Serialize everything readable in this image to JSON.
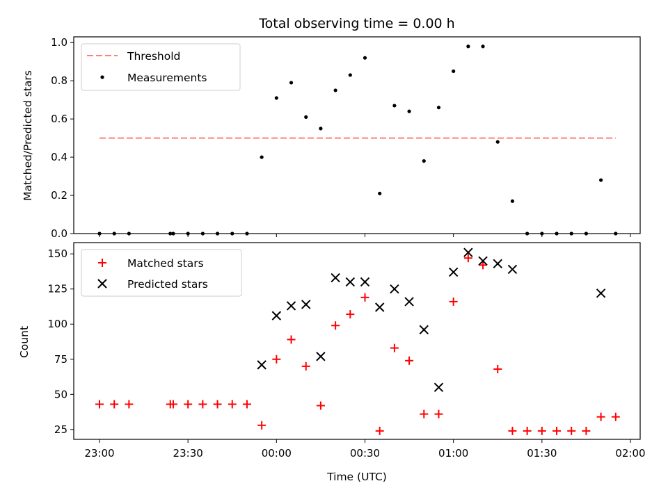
{
  "chart_data": [
    {
      "type": "scatter",
      "title": "Total observing time = 0.00 h",
      "ylabel": "Matched/Predicted stars",
      "ylim": [
        0,
        1.03
      ],
      "yticks": [
        "0.0",
        "0.2",
        "0.4",
        "0.6",
        "0.8",
        "1.0"
      ],
      "legend_position": "top-left",
      "threshold": {
        "name": "Threshold",
        "value": 0.5,
        "x_start": "23:00",
        "x_end": "01:55",
        "color": "#ff7f7f",
        "style": "dashed"
      },
      "series": [
        {
          "name": "Measurements",
          "color": "#000000",
          "marker": "dot",
          "x": [
            "23:00",
            "23:05",
            "23:10",
            "23:24",
            "23:25",
            "23:30",
            "23:35",
            "23:40",
            "23:45",
            "23:50",
            "23:55",
            "00:00",
            "00:05",
            "00:10",
            "00:15",
            "00:20",
            "00:25",
            "00:30",
            "00:35",
            "00:40",
            "00:45",
            "00:50",
            "00:55",
            "01:00",
            "01:05",
            "01:10",
            "01:15",
            "01:20",
            "01:25",
            "01:30",
            "01:35",
            "01:40",
            "01:45",
            "01:50",
            "01:55"
          ],
          "values": [
            0,
            0,
            0,
            0,
            0,
            0,
            0,
            0,
            0,
            0,
            0.4,
            0.71,
            0.79,
            0.61,
            0.55,
            0.75,
            0.83,
            0.92,
            0.21,
            0.67,
            0.64,
            0.38,
            0.66,
            0.85,
            0.98,
            0.98,
            0.48,
            0.17,
            0,
            0,
            0,
            0,
            0,
            0.28,
            0
          ]
        }
      ]
    },
    {
      "type": "scatter",
      "ylabel": "Count",
      "xlabel": "Time (UTC)",
      "ylim": [
        18,
        158
      ],
      "yticks": [
        "25",
        "50",
        "75",
        "100",
        "125",
        "150"
      ],
      "xticks": [
        "23:00",
        "23:30",
        "00:00",
        "00:30",
        "01:00",
        "01:30",
        "02:00"
      ],
      "legend_position": "top-left",
      "series": [
        {
          "name": "Matched stars",
          "color": "#ff0000",
          "marker": "plus",
          "x": [
            "23:00",
            "23:05",
            "23:10",
            "23:24",
            "23:25",
            "23:30",
            "23:35",
            "23:40",
            "23:45",
            "23:50",
            "23:55",
            "00:00",
            "00:05",
            "00:10",
            "00:15",
            "00:20",
            "00:25",
            "00:30",
            "00:35",
            "00:40",
            "00:45",
            "00:50",
            "00:55",
            "01:00",
            "01:05",
            "01:10",
            "01:15",
            "01:20",
            "01:25",
            "01:30",
            "01:35",
            "01:40",
            "01:45",
            "01:50",
            "01:55"
          ],
          "values": [
            43,
            43,
            43,
            43,
            43,
            43,
            43,
            43,
            43,
            43,
            28,
            75,
            89,
            70,
            42,
            99,
            107,
            119,
            24,
            83,
            74,
            36,
            36,
            116,
            147,
            142,
            68,
            24,
            24,
            24,
            24,
            24,
            24,
            34,
            34
          ]
        },
        {
          "name": "Predicted stars",
          "color": "#000000",
          "marker": "x",
          "x": [
            "23:55",
            "00:00",
            "00:05",
            "00:10",
            "00:15",
            "00:20",
            "00:25",
            "00:30",
            "00:35",
            "00:40",
            "00:45",
            "00:50",
            "00:55",
            "01:00",
            "01:05",
            "01:10",
            "01:15",
            "01:20",
            "01:50"
          ],
          "values": [
            71,
            106,
            113,
            114,
            77,
            133,
            130,
            130,
            112,
            125,
            116,
            96,
            55,
            137,
            151,
            145,
            143,
            139,
            122
          ]
        }
      ]
    }
  ]
}
